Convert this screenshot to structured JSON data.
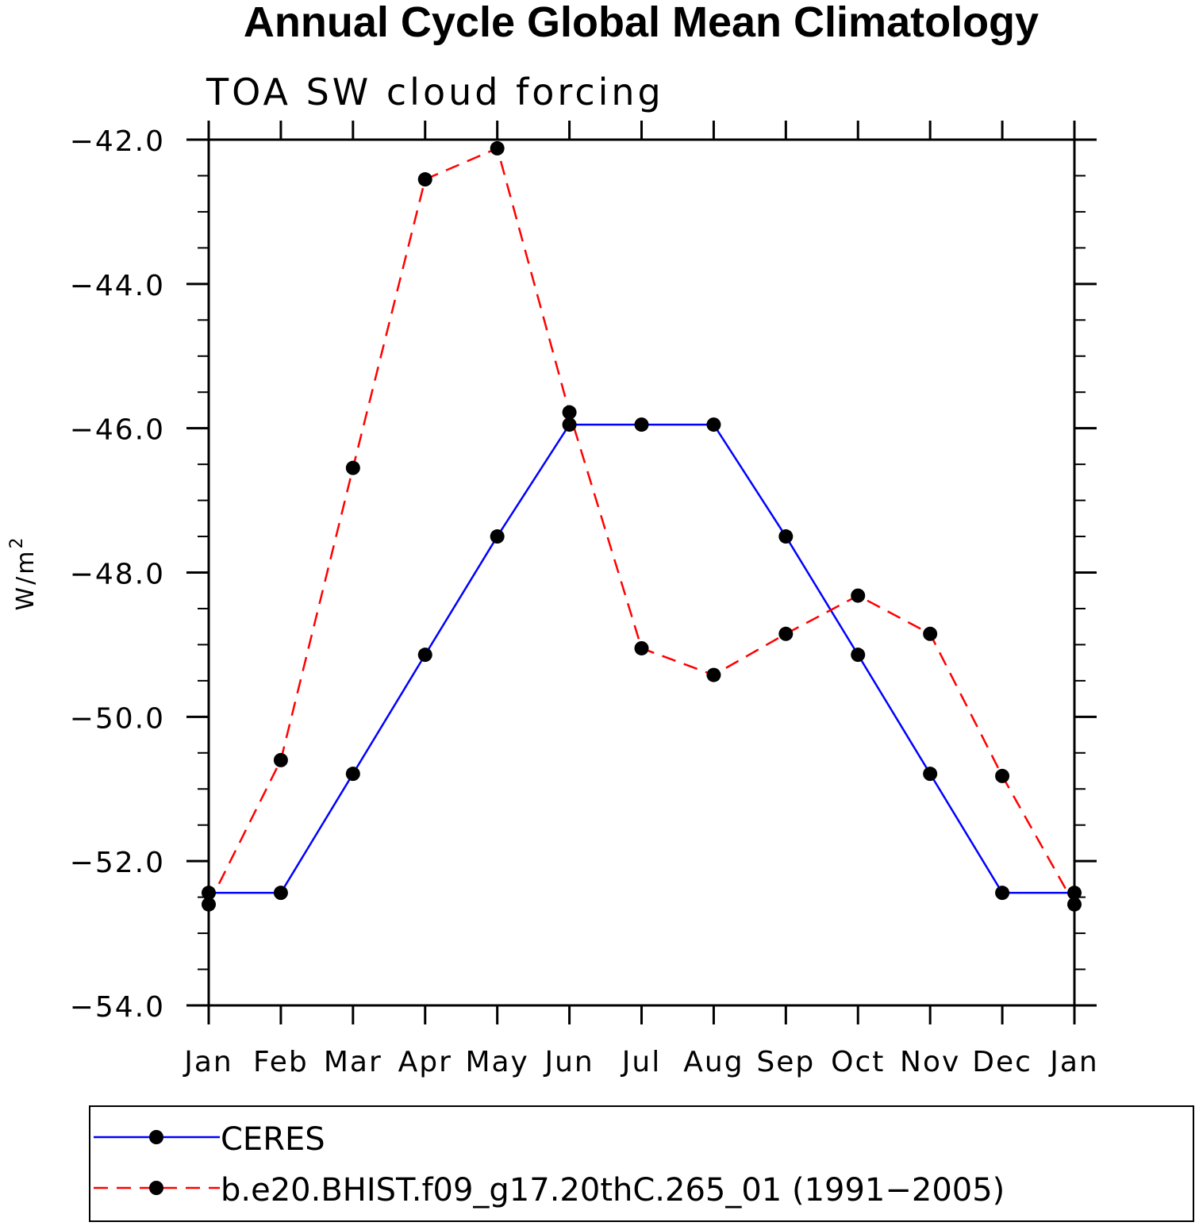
{
  "chart_data": {
    "type": "line",
    "title": "Annual Cycle Global Mean Climatology",
    "subtitle": "TOA SW cloud forcing",
    "ylabel": "W/m",
    "ylabel_superscript": "2",
    "xlabel": "",
    "ylim": [
      -54.0,
      -42.0
    ],
    "yticks": [
      "-42.0",
      "-44.0",
      "-46.0",
      "-48.0",
      "-50.0",
      "-52.0",
      "-54.0"
    ],
    "categories": [
      "Jan",
      "Feb",
      "Mar",
      "Apr",
      "May",
      "Jun",
      "Jul",
      "Aug",
      "Sep",
      "Oct",
      "Nov",
      "Dec",
      "Jan"
    ],
    "series": [
      {
        "name": "CERES",
        "color": "#0000ff",
        "style": "solid",
        "values": [
          -52.44,
          -52.44,
          -50.79,
          -49.14,
          -47.5,
          -45.95,
          -45.95,
          -45.95,
          -47.5,
          -49.14,
          -50.79,
          -52.44,
          -52.44
        ]
      },
      {
        "name": "b.e20.BHIST.f09_g17.20thC.265_01 (1991−2005)",
        "color": "#ff0000",
        "style": "dashed",
        "values": [
          -52.6,
          -50.6,
          -46.55,
          -42.55,
          -42.12,
          -45.78,
          -49.05,
          -49.42,
          -48.85,
          -48.32,
          -48.85,
          -50.82,
          -52.6
        ]
      }
    ],
    "legend_position": "bottom"
  }
}
